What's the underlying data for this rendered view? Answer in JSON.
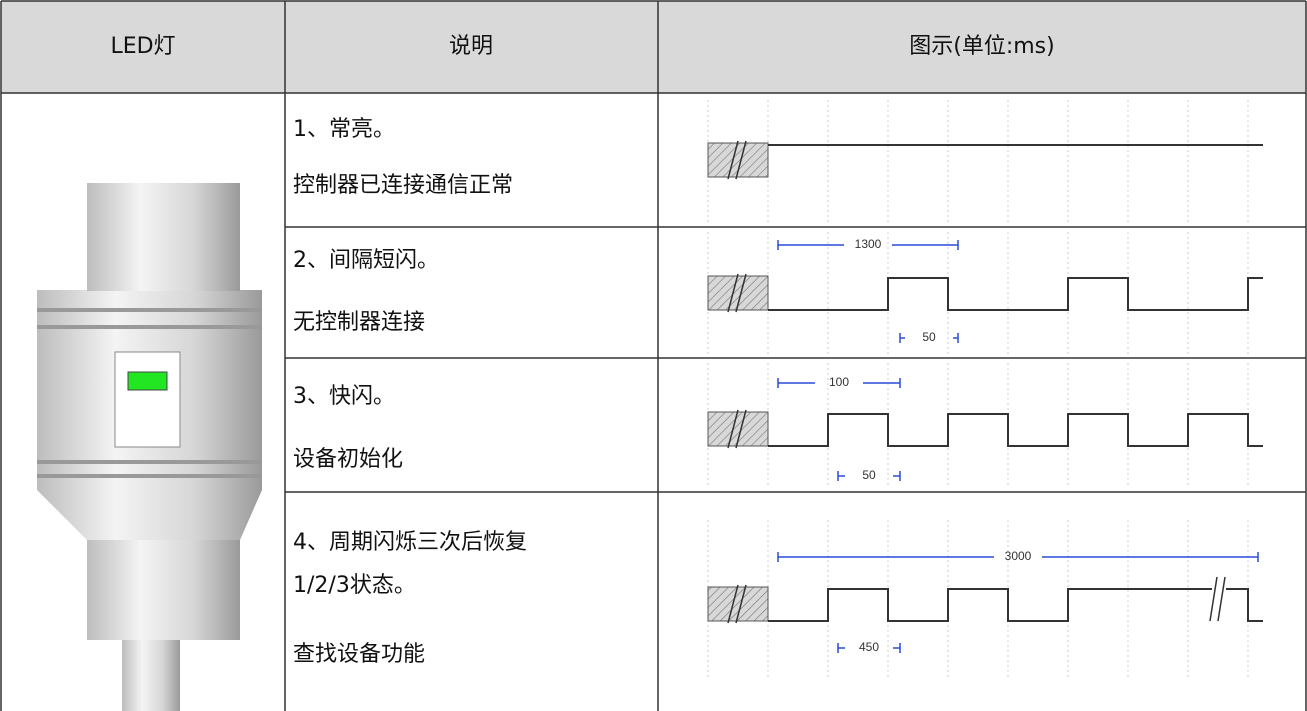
{
  "table": {
    "header": [
      "LED灯",
      "说明",
      "图示(单位:ms)"
    ],
    "rows": [
      {
        "lines": [
          "1、常亮。",
          "控制器已连接通信正常"
        ],
        "marks": []
      },
      {
        "lines": [
          "2、间隔短闪。",
          "无控制器连接"
        ],
        "marks": [
          1300,
          50
        ]
      },
      {
        "lines": [
          "3、快闪。",
          "设备初始化"
        ],
        "marks": [
          100,
          50
        ]
      },
      {
        "lines": [
          "4、周期闪烁三次后恢复",
          "1/2/3状态。",
          "查找设备功能"
        ],
        "marks": [
          3000,
          450
        ]
      }
    ]
  }
}
